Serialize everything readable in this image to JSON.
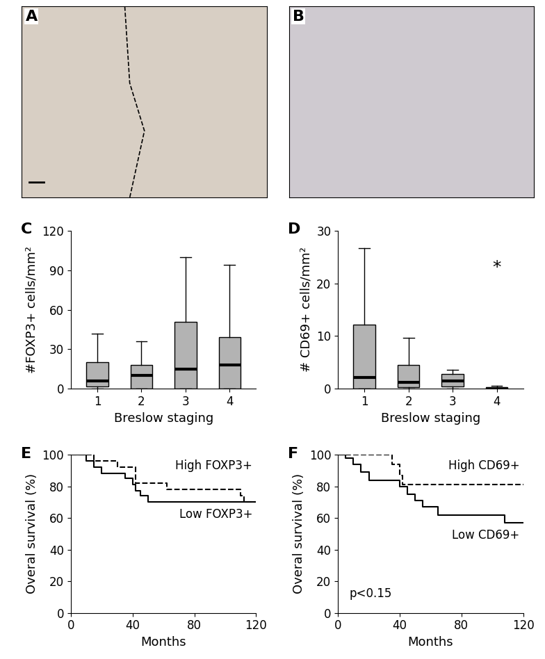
{
  "images": [
    {
      "panel": "A"
    },
    {
      "panel": "B"
    }
  ],
  "chart_data": [
    {
      "type": "box",
      "panel": "C",
      "xlabel": "Breslow staging",
      "ylabel": "#FOXP3+ cells/mm²",
      "categories": [
        "1",
        "2",
        "3",
        "4"
      ],
      "values": [
        {
          "whislo": 0,
          "q1": 2,
          "med": 6,
          "q3": 20,
          "whishi": 42
        },
        {
          "whislo": 0,
          "q1": 0,
          "med": 10,
          "q3": 18,
          "whishi": 36
        },
        {
          "whislo": 0,
          "q1": 0,
          "med": 15,
          "q3": 51,
          "whishi": 100
        },
        {
          "whislo": 0,
          "q1": 0,
          "med": 18,
          "q3": 39,
          "whishi": 94
        }
      ],
      "color": "#b3b3b3",
      "ylim": [
        0,
        120
      ],
      "yticks": [
        0,
        30,
        60,
        90,
        120
      ],
      "grid": false
    },
    {
      "type": "box",
      "panel": "D",
      "xlabel": "Breslow staging",
      "ylabel": "# CD69+ cells/mm²",
      "categories": [
        "1",
        "2",
        "3",
        "4"
      ],
      "values": [
        {
          "whislo": 0,
          "q1": 0,
          "med": 2.2,
          "q3": 12.2,
          "whishi": 26.7
        },
        {
          "whislo": 0,
          "q1": 0.3,
          "med": 1.2,
          "q3": 4.5,
          "whishi": 9.7
        },
        {
          "whislo": 0,
          "q1": 0.5,
          "med": 1.5,
          "q3": 2.8,
          "whishi": 3.6
        },
        {
          "whislo": 0,
          "q1": 0,
          "med": 0.1,
          "q3": 0.3,
          "whishi": 0.6
        }
      ],
      "annotations": [
        {
          "text": "*",
          "x": 4,
          "y": 23
        }
      ],
      "color": "#b3b3b3",
      "ylim": [
        0,
        30
      ],
      "yticks": [
        0,
        10,
        20,
        30
      ],
      "grid": false
    },
    {
      "type": "line",
      "panel": "E",
      "xlabel": "Months",
      "ylabel": "Overal survival (%)",
      "series": [
        {
          "name": "High FOXP3+",
          "color": "#000000",
          "line_style": "dashed",
          "x": [
            0,
            15,
            30,
            42,
            60,
            62,
            110,
            112,
            120
          ],
          "values": [
            100,
            96,
            92,
            82,
            82,
            78,
            74,
            70,
            70
          ]
        },
        {
          "name": "Low FOXP3+",
          "color": "#000000",
          "line_style": "solid",
          "x": [
            0,
            10,
            15,
            20,
            35,
            40,
            42,
            45,
            50,
            120
          ],
          "values": [
            100,
            96,
            92,
            88,
            85,
            81,
            77,
            74,
            70,
            70
          ]
        }
      ],
      "xlim": [
        0,
        120
      ],
      "xticks": [
        0,
        40,
        80,
        120
      ],
      "ylim": [
        0,
        100
      ],
      "yticks": [
        0,
        20,
        40,
        60,
        80,
        100
      ],
      "grid": false
    },
    {
      "type": "line",
      "panel": "F",
      "xlabel": "Months",
      "ylabel": "Overal survival (%)",
      "series": [
        {
          "name": "High CD69+",
          "color": "#000000",
          "line_style": "dashed",
          "x": [
            0,
            25,
            35,
            40,
            42,
            120
          ],
          "values": [
            100,
            100,
            94,
            87,
            81,
            81
          ]
        },
        {
          "name": "Low CD69+",
          "color": "#000000",
          "line_style": "solid",
          "x": [
            0,
            5,
            10,
            15,
            20,
            35,
            40,
            45,
            50,
            55,
            65,
            105,
            108,
            120
          ],
          "values": [
            100,
            98,
            94,
            89,
            84,
            84,
            80,
            75,
            71,
            67,
            62,
            62,
            57,
            57
          ]
        }
      ],
      "annotations": [
        {
          "text": "p<0.15"
        }
      ],
      "xlim": [
        0,
        120
      ],
      "xticks": [
        0,
        40,
        80,
        120
      ],
      "ylim": [
        0,
        100
      ],
      "yticks": [
        0,
        20,
        40,
        60,
        80,
        100
      ],
      "grid": false
    }
  ]
}
